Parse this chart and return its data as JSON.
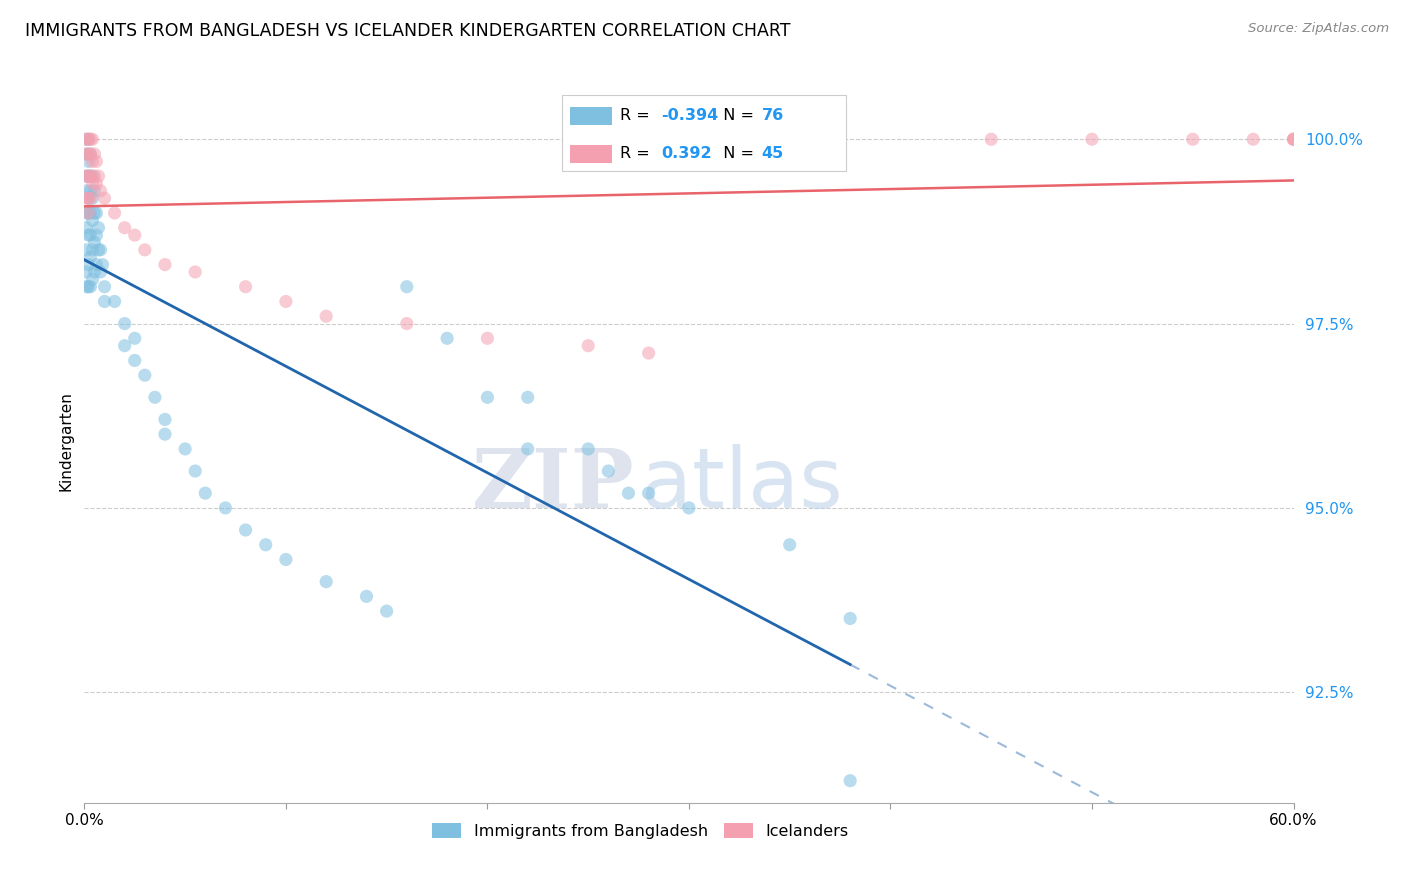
{
  "title": "IMMIGRANTS FROM BANGLADESH VS ICELANDER KINDERGARTEN CORRELATION CHART",
  "source": "Source: ZipAtlas.com",
  "ylabel": "Kindergarten",
  "legend_blue_label": "Immigrants from Bangladesh",
  "legend_pink_label": "Icelanders",
  "R_blue": -0.394,
  "N_blue": 76,
  "R_pink": 0.392,
  "N_pink": 45,
  "blue_color": "#7fbfdf",
  "pink_color": "#f4a0b0",
  "blue_line_color": "#2166ac",
  "pink_line_color": "#e8636a",
  "xmin": 0.0,
  "xmax": 0.6,
  "ymin": 91.0,
  "ymax": 100.8,
  "yticks": [
    92.5,
    95.0,
    97.5,
    100.0
  ],
  "watermark_zip": "ZIP",
  "watermark_atlas": "atlas",
  "blue_scatter_x": [
    0.001,
    0.001,
    0.001,
    0.001,
    0.001,
    0.001,
    0.001,
    0.001,
    0.001,
    0.002,
    0.002,
    0.002,
    0.002,
    0.002,
    0.002,
    0.002,
    0.002,
    0.003,
    0.003,
    0.003,
    0.003,
    0.003,
    0.003,
    0.003,
    0.004,
    0.004,
    0.004,
    0.004,
    0.004,
    0.005,
    0.005,
    0.005,
    0.005,
    0.006,
    0.006,
    0.006,
    0.007,
    0.007,
    0.008,
    0.008,
    0.009,
    0.01,
    0.01,
    0.015,
    0.02,
    0.02,
    0.025,
    0.025,
    0.03,
    0.035,
    0.04,
    0.04,
    0.05,
    0.055,
    0.06,
    0.07,
    0.08,
    0.09,
    0.1,
    0.12,
    0.14,
    0.15,
    0.16,
    0.18,
    0.2,
    0.22,
    0.28,
    0.3,
    0.35,
    0.22,
    0.25,
    0.26,
    0.27,
    0.38,
    0.38
  ],
  "blue_scatter_y": [
    100.0,
    99.8,
    99.5,
    99.3,
    99.0,
    98.8,
    98.5,
    98.2,
    98.0,
    100.0,
    99.7,
    99.5,
    99.2,
    99.0,
    98.7,
    98.3,
    98.0,
    99.8,
    99.5,
    99.3,
    99.0,
    98.7,
    98.4,
    98.0,
    99.5,
    99.2,
    98.9,
    98.5,
    98.1,
    99.3,
    99.0,
    98.6,
    98.2,
    99.0,
    98.7,
    98.3,
    98.8,
    98.5,
    98.5,
    98.2,
    98.3,
    98.0,
    97.8,
    97.8,
    97.5,
    97.2,
    97.3,
    97.0,
    96.8,
    96.5,
    96.2,
    96.0,
    95.8,
    95.5,
    95.2,
    95.0,
    94.7,
    94.5,
    94.3,
    94.0,
    93.8,
    93.6,
    98.0,
    97.3,
    96.5,
    95.8,
    95.2,
    95.0,
    94.5,
    96.5,
    95.8,
    95.5,
    95.2,
    93.5,
    91.3
  ],
  "pink_scatter_x": [
    0.001,
    0.001,
    0.001,
    0.001,
    0.002,
    0.002,
    0.002,
    0.002,
    0.002,
    0.003,
    0.003,
    0.003,
    0.003,
    0.004,
    0.004,
    0.004,
    0.005,
    0.005,
    0.006,
    0.006,
    0.007,
    0.008,
    0.01,
    0.015,
    0.02,
    0.025,
    0.03,
    0.04,
    0.055,
    0.08,
    0.1,
    0.12,
    0.16,
    0.2,
    0.25,
    0.28,
    0.45,
    0.5,
    0.55,
    0.58,
    0.6,
    0.6,
    0.6
  ],
  "pink_scatter_y": [
    100.0,
    99.8,
    99.5,
    99.2,
    100.0,
    99.8,
    99.5,
    99.2,
    99.0,
    100.0,
    99.8,
    99.5,
    99.2,
    100.0,
    99.7,
    99.4,
    99.8,
    99.5,
    99.7,
    99.4,
    99.5,
    99.3,
    99.2,
    99.0,
    98.8,
    98.7,
    98.5,
    98.3,
    98.2,
    98.0,
    97.8,
    97.6,
    97.5,
    97.3,
    97.2,
    97.1,
    100.0,
    100.0,
    100.0,
    100.0,
    100.0,
    100.0,
    100.0
  ]
}
